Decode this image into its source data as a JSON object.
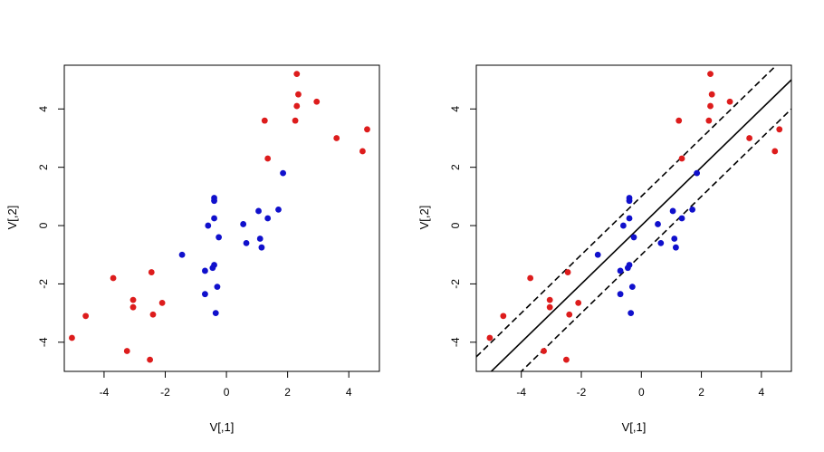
{
  "chart_data": [
    {
      "type": "scatter",
      "title": "",
      "xlabel": "V[,1]",
      "ylabel": "V[,2]",
      "xlim": [
        -5.3,
        5.0
      ],
      "ylim": [
        -5.0,
        5.5
      ],
      "xticks": [
        -4,
        -2,
        0,
        2,
        4
      ],
      "yticks": [
        -4,
        -2,
        0,
        2,
        4
      ],
      "grid": false,
      "legend": "none",
      "series": [
        {
          "color": "#dd1c1c",
          "points": [
            [
              2.3,
              5.2
            ],
            [
              2.35,
              4.5
            ],
            [
              2.3,
              4.1
            ],
            [
              2.95,
              4.25
            ],
            [
              2.25,
              3.6
            ],
            [
              1.25,
              3.6
            ],
            [
              4.6,
              3.3
            ],
            [
              3.6,
              3.0
            ],
            [
              4.45,
              2.55
            ],
            [
              1.35,
              2.3
            ],
            [
              -3.7,
              -1.8
            ],
            [
              -2.45,
              -1.6
            ],
            [
              -3.05,
              -2.55
            ],
            [
              -2.1,
              -2.65
            ],
            [
              -3.05,
              -2.8
            ],
            [
              -4.6,
              -3.1
            ],
            [
              -2.4,
              -3.05
            ],
            [
              -5.05,
              -3.85
            ],
            [
              -3.25,
              -4.3
            ],
            [
              -2.5,
              -4.6
            ]
          ]
        },
        {
          "color": "#1010cc",
          "points": [
            [
              -0.4,
              0.95
            ],
            [
              -0.4,
              0.85
            ],
            [
              1.85,
              1.8
            ],
            [
              -0.4,
              0.25
            ],
            [
              -0.6,
              0.0
            ],
            [
              0.55,
              0.05
            ],
            [
              1.05,
              0.5
            ],
            [
              1.35,
              0.25
            ],
            [
              1.7,
              0.55
            ],
            [
              -0.25,
              -0.4
            ],
            [
              1.1,
              -0.45
            ],
            [
              0.65,
              -0.6
            ],
            [
              1.15,
              -0.75
            ],
            [
              -1.45,
              -1.0
            ],
            [
              -0.4,
              -1.35
            ],
            [
              -0.45,
              -1.45
            ],
            [
              -0.7,
              -1.55
            ],
            [
              -0.3,
              -2.1
            ],
            [
              -0.7,
              -2.35
            ],
            [
              -0.35,
              -3.0
            ]
          ]
        }
      ]
    },
    {
      "type": "scatter",
      "title": "",
      "xlabel": "V[,1]",
      "ylabel": "V[,2]",
      "xlim": [
        -5.5,
        5.0
      ],
      "ylim": [
        -5.0,
        5.5
      ],
      "xticks": [
        -4,
        -2,
        0,
        2,
        4
      ],
      "yticks": [
        -4,
        -2,
        0,
        2,
        4
      ],
      "grid": false,
      "legend": "none",
      "series": [
        {
          "color": "#dd1c1c",
          "points": [
            [
              2.3,
              5.2
            ],
            [
              2.35,
              4.5
            ],
            [
              2.3,
              4.1
            ],
            [
              2.95,
              4.25
            ],
            [
              2.25,
              3.6
            ],
            [
              1.25,
              3.6
            ],
            [
              4.6,
              3.3
            ],
            [
              3.6,
              3.0
            ],
            [
              4.45,
              2.55
            ],
            [
              1.35,
              2.3
            ],
            [
              -3.7,
              -1.8
            ],
            [
              -2.45,
              -1.6
            ],
            [
              -3.05,
              -2.55
            ],
            [
              -2.1,
              -2.65
            ],
            [
              -3.05,
              -2.8
            ],
            [
              -4.6,
              -3.1
            ],
            [
              -2.4,
              -3.05
            ],
            [
              -5.05,
              -3.85
            ],
            [
              -3.25,
              -4.3
            ],
            [
              -2.5,
              -4.6
            ]
          ]
        },
        {
          "color": "#1010cc",
          "points": [
            [
              -0.4,
              0.95
            ],
            [
              -0.4,
              0.85
            ],
            [
              1.85,
              1.8
            ],
            [
              -0.4,
              0.25
            ],
            [
              -0.6,
              0.0
            ],
            [
              0.55,
              0.05
            ],
            [
              1.05,
              0.5
            ],
            [
              1.35,
              0.25
            ],
            [
              1.7,
              0.55
            ],
            [
              -0.25,
              -0.4
            ],
            [
              1.1,
              -0.45
            ],
            [
              0.65,
              -0.6
            ],
            [
              1.15,
              -0.75
            ],
            [
              -1.45,
              -1.0
            ],
            [
              -0.4,
              -1.35
            ],
            [
              -0.45,
              -1.45
            ],
            [
              -0.7,
              -1.55
            ],
            [
              -0.3,
              -2.1
            ],
            [
              -0.7,
              -2.35
            ],
            [
              -0.35,
              -3.0
            ]
          ]
        }
      ],
      "lines": [
        {
          "style": "solid",
          "intercept": 0.0,
          "slope": 1.0
        },
        {
          "style": "dashed",
          "intercept": 1.0,
          "slope": 1.0
        },
        {
          "style": "dashed",
          "intercept": -1.0,
          "slope": 1.0
        }
      ]
    }
  ]
}
